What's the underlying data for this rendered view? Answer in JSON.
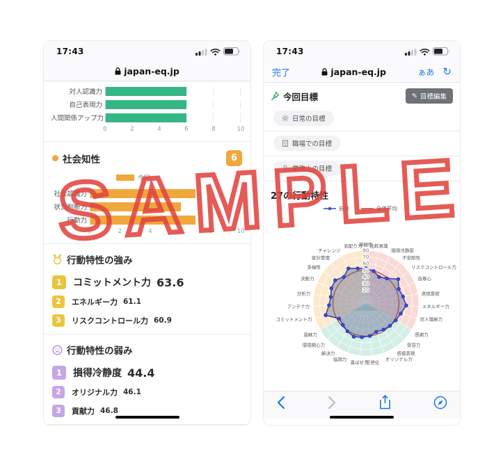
{
  "watermark": {
    "text": "SAMPLE",
    "color": "#e2453f"
  },
  "left_phone": {
    "status_bar": {
      "time": "17:43",
      "icons": [
        "cellular-signal-icon",
        "wifi-icon",
        "battery-icon"
      ]
    },
    "url_bar": {
      "icon": "lock-icon",
      "domain": "japan-eq.jp"
    },
    "social_section": {
      "title": "社会知性",
      "score": "6"
    },
    "strengths_section": {
      "title": "行動特性の強み",
      "icon": "medal-icon",
      "items": [
        {
          "rank": "1",
          "label": "コミットメント力",
          "value": "63.6"
        },
        {
          "rank": "2",
          "label": "エネルギー力",
          "value": "61.1"
        },
        {
          "rank": "3",
          "label": "リスクコントロール力",
          "value": "60.9"
        }
      ]
    },
    "weaknesses_section": {
      "title": "行動特性の弱み",
      "icon": "sad-face-icon",
      "items": [
        {
          "rank": "1",
          "label": "損得冷静度",
          "value": "44.4"
        },
        {
          "rank": "2",
          "label": "オリジナル力",
          "value": "46.1"
        },
        {
          "rank": "3",
          "label": "貢献力",
          "value": "46.8"
        }
      ]
    }
  },
  "right_phone": {
    "status_bar": {
      "time": "17:43",
      "icons": [
        "cellular-signal-icon",
        "wifi-icon",
        "battery-icon"
      ]
    },
    "nav_bar": {
      "done_label": "完了",
      "icon": "lock-icon",
      "domain": "japan-eq.jp",
      "text_size_label": "ぁあ",
      "reload_label": "↻"
    },
    "goals_section": {
      "icon": "pushpin-icon",
      "title": "今回目標",
      "edit_button": "目標編集",
      "edit_icon": "✎",
      "pills": [
        {
          "icon": "sun-icon",
          "label": "日常の目標"
        },
        {
          "icon": "building-icon",
          "label": "職場での目標"
        },
        {
          "icon": "person-icon",
          "label": "業務上の目標"
        }
      ]
    },
    "radar_section": {
      "title": "27の行動特性"
    },
    "toolbar": {
      "icons": [
        "back-icon",
        "forward-icon",
        "share-icon",
        "compass-icon"
      ]
    }
  },
  "chart_data": [
    {
      "id": "previous-traits-bars",
      "type": "bar",
      "categories": [
        "対人認識力",
        "自己表現力",
        "人間関係アップ力"
      ],
      "values": [
        6,
        6,
        6
      ],
      "xticks": [
        0,
        2,
        4,
        6,
        8,
        10
      ],
      "xlim": [
        0,
        10
      ],
      "color": "#36b585"
    },
    {
      "id": "social-intelligence-bars",
      "type": "bar",
      "title": "社会知性",
      "legend": "今回",
      "categories": [
        "社会認識力",
        "状況判断力",
        "行動力"
      ],
      "values": [
        7,
        6,
        7
      ],
      "xticks": [
        0,
        2,
        4,
        6,
        8,
        10
      ],
      "xlim": [
        0,
        10
      ],
      "color": "#f0a73c"
    },
    {
      "id": "behavior-traits-radar",
      "type": "radar",
      "title": "27の行動特性",
      "rlim": [
        0,
        80
      ],
      "rticks": [
        20,
        30,
        40,
        50,
        60,
        70,
        80
      ],
      "labels": [
        "楽観性",
        "比較意識",
        "損得冷静度",
        "不安耐性",
        "リスクコントロール力",
        "自尊心",
        "達成意欲",
        "エネルギー力",
        "対人理解力",
        "感謝力",
        "受容力",
        "感情表現",
        "オリジナル力",
        "可視化",
        "喜ばせ力",
        "協調力",
        "解決力",
        "環境関心力",
        "貢献力",
        "コミットメント力",
        "アンテナ力",
        "分析力",
        "決断力",
        "多様性",
        "家計管理",
        "チャレンジ",
        "気配り力"
      ],
      "series": [
        {
          "name": "自分",
          "color": "#3344c2",
          "values": [
            53,
            50,
            44.4,
            49,
            60.9,
            54,
            57,
            61.1,
            55,
            52,
            50,
            48,
            46.1,
            50,
            52,
            54,
            51,
            48,
            46.8,
            63.6,
            56,
            54,
            57,
            58,
            52,
            59,
            54
          ]
        },
        {
          "name": "全体平均",
          "color": "#b0504b",
          "values": [
            50,
            50,
            50,
            50,
            50,
            50,
            50,
            50,
            50,
            50,
            50,
            50,
            50,
            50,
            50,
            50,
            50,
            50,
            50,
            50,
            50,
            50,
            50,
            50,
            50,
            50,
            50
          ]
        }
      ],
      "sector_colors": [
        "#fadad6",
        "#d3eee5",
        "#fce8cc"
      ],
      "legend_position": "top"
    }
  ]
}
